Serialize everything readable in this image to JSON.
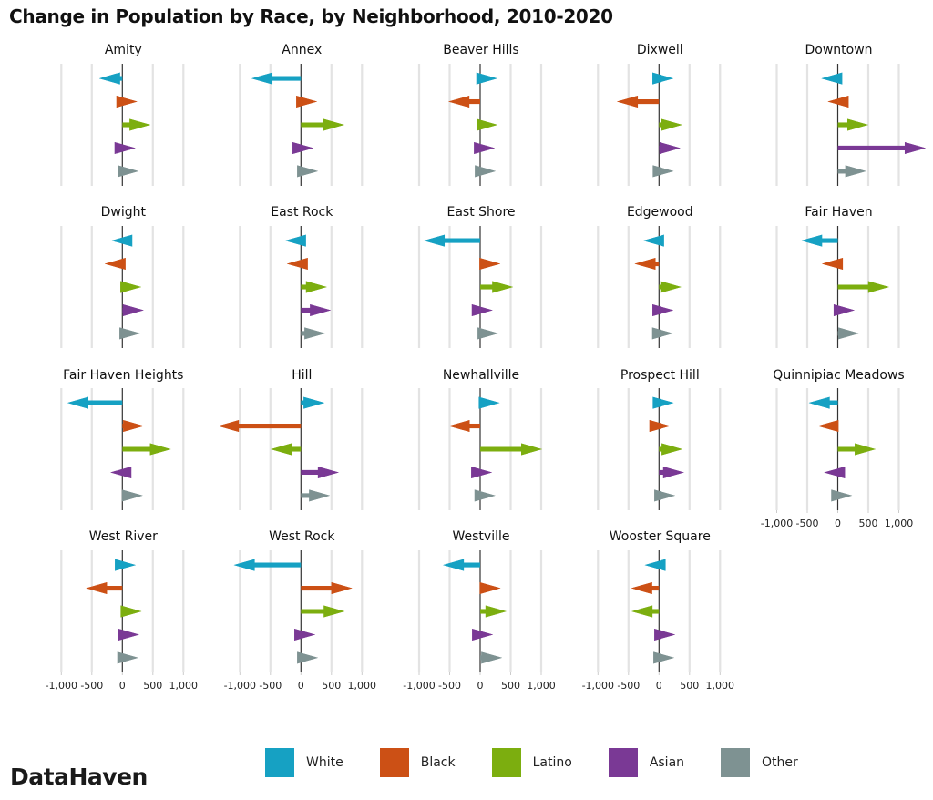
{
  "chart_data": {
    "type": "bar",
    "subtype": "arrow-facets",
    "title": "Change in Population by Race, by Neighborhood, 2010-2020",
    "xlabel": "",
    "ylabel": "",
    "xlim": [
      -1000,
      1400
    ],
    "x_ticks": [
      -1000,
      -500,
      0,
      500,
      1000
    ],
    "x_tick_labels": [
      "-1,000",
      "-500",
      "0",
      "500",
      "1,000"
    ],
    "grid": true,
    "legend_position": "bottom",
    "series_order": [
      "White",
      "Black",
      "Latino",
      "Asian",
      "Other"
    ],
    "colors": {
      "White": "#16a1c3",
      "Black": "#cc5015",
      "Latino": "#7cae0f",
      "Asian": "#7a3995",
      "Other": "#7e9292"
    },
    "facets": [
      {
        "name": "Amity",
        "values": {
          "White": -380,
          "Black": 245,
          "Latino": 460,
          "Asian": 215,
          "Other": 265
        }
      },
      {
        "name": "Annex",
        "values": {
          "White": -810,
          "Black": 265,
          "Latino": 710,
          "Asian": 205,
          "Other": 280
        }
      },
      {
        "name": "Beaver Hills",
        "values": {
          "White": 280,
          "Black": -520,
          "Latino": 285,
          "Asian": 240,
          "Other": 255
        }
      },
      {
        "name": "Dixwell",
        "values": {
          "White": 235,
          "Black": -690,
          "Latino": 380,
          "Asian": 350,
          "Other": 240
        }
      },
      {
        "name": "Downtown",
        "values": {
          "White": -270,
          "Black": -165,
          "Latino": 500,
          "Asian": 1440,
          "Other": 465
        }
      },
      {
        "name": "Dwight",
        "values": {
          "White": -180,
          "Black": -290,
          "Latino": 310,
          "Asian": 350,
          "Other": 295
        }
      },
      {
        "name": "East Rock",
        "values": {
          "White": -260,
          "Black": -230,
          "Latino": 425,
          "Asian": 490,
          "Other": 400
        }
      },
      {
        "name": "East Shore",
        "values": {
          "White": -925,
          "Black": 330,
          "Latino": 540,
          "Asian": 205,
          "Other": 300
        }
      },
      {
        "name": "Edgewood",
        "values": {
          "White": -260,
          "Black": -400,
          "Latino": 365,
          "Asian": 235,
          "Other": 230
        }
      },
      {
        "name": "Fair Haven",
        "values": {
          "White": -600,
          "Black": -260,
          "Latino": 840,
          "Asian": 275,
          "Other": 350
        }
      },
      {
        "name": "Fair Haven Heights",
        "values": {
          "White": -900,
          "Black": 355,
          "Latino": 795,
          "Asian": -195,
          "Other": 335
        }
      },
      {
        "name": "Hill",
        "values": {
          "White": 385,
          "Black": -1360,
          "Latino": -495,
          "Asian": 620,
          "Other": 475
        }
      },
      {
        "name": "Newhallville",
        "values": {
          "White": 320,
          "Black": -515,
          "Latino": 1015,
          "Asian": 195,
          "Other": 250
        }
      },
      {
        "name": "Prospect Hill",
        "values": {
          "White": 240,
          "Black": 185,
          "Latino": 385,
          "Asian": 410,
          "Other": 265
        }
      },
      {
        "name": "Quinnipiac Meadows",
        "values": {
          "White": -475,
          "Black": -330,
          "Latino": 620,
          "Asian": -225,
          "Other": 235
        }
      },
      {
        "name": "West River",
        "values": {
          "White": 220,
          "Black": -595,
          "Latino": 315,
          "Asian": 275,
          "Other": 260
        }
      },
      {
        "name": "West Rock",
        "values": {
          "White": -1100,
          "Black": 840,
          "Latino": 715,
          "Asian": 235,
          "Other": 280
        }
      },
      {
        "name": "Westville",
        "values": {
          "White": -610,
          "Black": 335,
          "Latino": 430,
          "Asian": 210,
          "Other": 360
        }
      },
      {
        "name": "Wooster Square",
        "values": {
          "White": -235,
          "Black": -455,
          "Latino": -450,
          "Asian": 265,
          "Other": 250
        }
      }
    ],
    "axis_shown_under": [
      "Quinnipiac Meadows",
      "West River",
      "West Rock",
      "Westville",
      "Wooster Square"
    ]
  },
  "legend": {
    "items": [
      {
        "label": "White",
        "color": "#16a1c3"
      },
      {
        "label": "Black",
        "color": "#cc5015"
      },
      {
        "label": "Latino",
        "color": "#7cae0f"
      },
      {
        "label": "Asian",
        "color": "#7a3995"
      },
      {
        "label": "Other",
        "color": "#7e9292"
      }
    ]
  },
  "brand": "DataHaven"
}
